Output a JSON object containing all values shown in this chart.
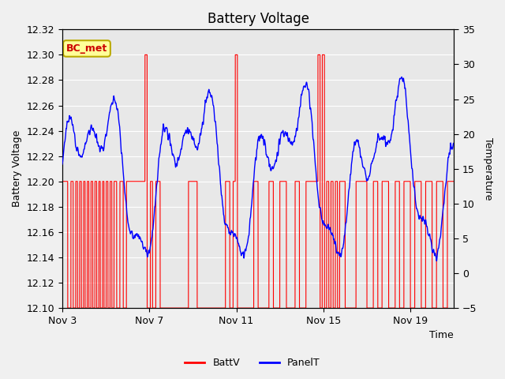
{
  "title": "Battery Voltage",
  "xlabel": "Time",
  "ylabel_left": "Battery Voltage",
  "ylabel_right": "Temperature",
  "ylim_left": [
    12.1,
    12.32
  ],
  "ylim_right": [
    -5,
    35
  ],
  "yticks_left": [
    12.1,
    12.12,
    12.14,
    12.16,
    12.18,
    12.2,
    12.22,
    12.24,
    12.26,
    12.28,
    12.3,
    12.32
  ],
  "yticks_right": [
    -5,
    0,
    5,
    10,
    15,
    20,
    25,
    30,
    35
  ],
  "xtick_labels": [
    "Nov 3",
    "Nov 7",
    "Nov 11",
    "Nov 15",
    "Nov 19"
  ],
  "xtick_positions": [
    0,
    4,
    8,
    12,
    16
  ],
  "xlim": [
    0,
    18
  ],
  "annotation_text": "BC_met",
  "annotation_bg": "#FFFF99",
  "annotation_border": "#BBAA00",
  "annotation_text_color": "#CC0000",
  "fig_bg": "#F0F0F0",
  "plot_bg": "#E8E8E8",
  "batt_color": "#FF0000",
  "panel_color": "#0000FF",
  "legend_batt": "BattV",
  "legend_panel": "PanelT",
  "grid_color": "#FFFFFF",
  "title_fontsize": 12,
  "label_fontsize": 9,
  "tick_fontsize": 9
}
